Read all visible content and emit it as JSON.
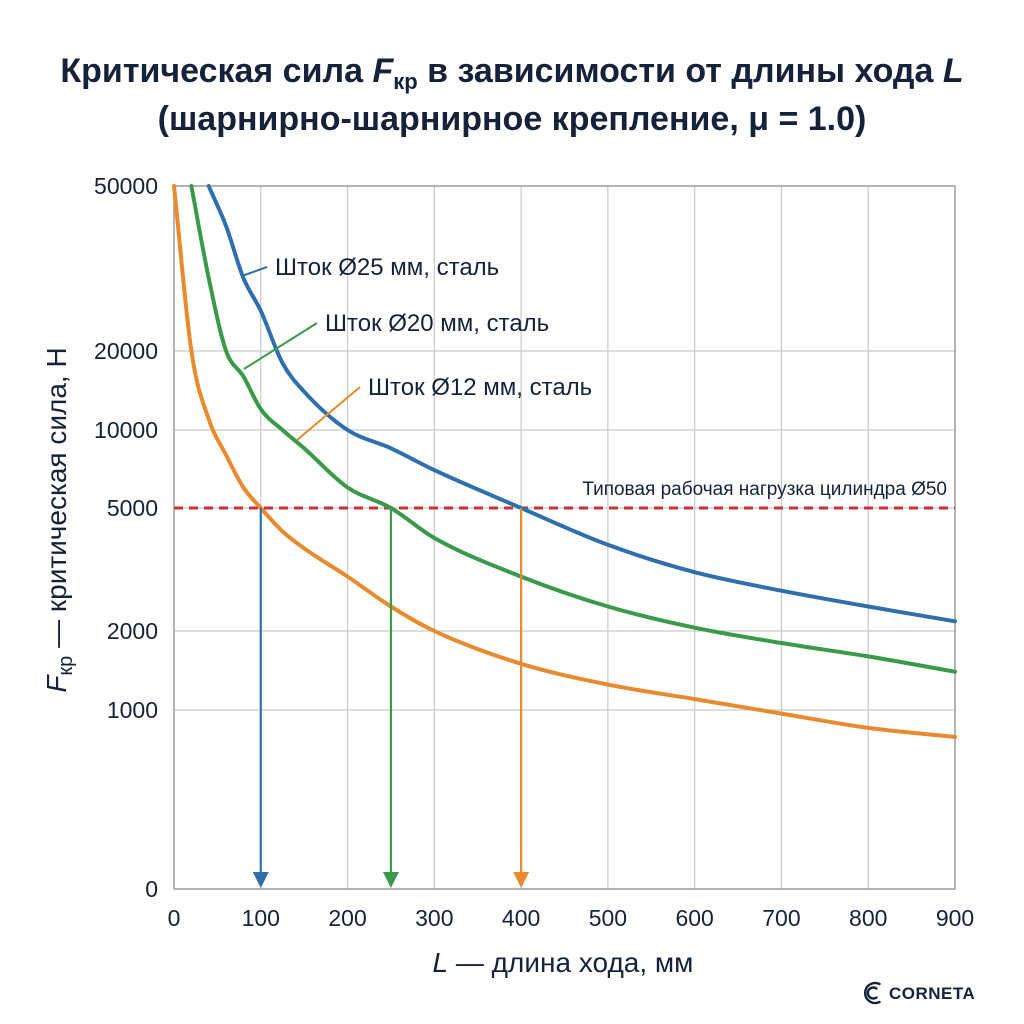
{
  "chart_data": {
    "type": "line",
    "title_line1_pre": "Критическая сила ",
    "title_line1_var": "F",
    "title_line1_sub": "кр",
    "title_line1_post": " в зависимости от длины хода ",
    "title_line1_var2": "L",
    "title_line2": "(шарнирно-шарнирное крепление, μ = 1.0)",
    "xlabel_var": "L",
    "xlabel_text": " — длина хода, мм",
    "ylabel_var": "F",
    "ylabel_sub": "кр",
    "ylabel_text": " — критическая сила, Н",
    "x_ticks": [
      0,
      100,
      200,
      300,
      400,
      500,
      600,
      700,
      800,
      900
    ],
    "x_tick_labels": [
      "0",
      "100",
      "200",
      "300",
      "400",
      "500",
      "600",
      "700",
      "800",
      "900"
    ],
    "y_ticks": [
      0,
      1000,
      2000,
      5000,
      10000,
      20000,
      50000
    ],
    "y_tick_labels": [
      "0",
      "1000",
      "2000",
      "5000",
      "10000",
      "20000",
      "50000"
    ],
    "xlim": [
      0,
      900
    ],
    "ylim": [
      0,
      50000
    ],
    "grid": true,
    "series": [
      {
        "name": "Шток Ø25 мм, сталь",
        "color": "#2f6fae",
        "x": [
          40,
          60,
          80,
          100,
          125,
          150,
          200,
          250,
          300,
          400,
          500,
          600,
          700,
          800,
          900
        ],
        "y": [
          50000,
          40000,
          30000,
          25000,
          18000,
          14000,
          10000,
          8500,
          7000,
          5000,
          3800,
          3100,
          2700,
          2400,
          2150
        ],
        "label_anchor_x": 80
      },
      {
        "name": "Шток Ø20 мм, сталь",
        "color": "#3a9a4a",
        "x": [
          20,
          40,
          60,
          80,
          100,
          125,
          150,
          200,
          250,
          300,
          400,
          500,
          600,
          700,
          800,
          900
        ],
        "y": [
          50000,
          30000,
          20000,
          16000,
          12000,
          10000,
          8500,
          6000,
          5000,
          4000,
          3000,
          2400,
          2050,
          1800,
          1600,
          1400
        ],
        "label_anchor_x": 80
      },
      {
        "name": "Шток Ø12 мм, сталь",
        "color": "#e88a2e",
        "x": [
          0,
          20,
          40,
          60,
          80,
          100,
          125,
          150,
          200,
          250,
          300,
          400,
          500,
          600,
          700,
          800,
          900
        ],
        "y": [
          50000,
          20000,
          11000,
          8000,
          6000,
          5000,
          4200,
          3700,
          3000,
          2400,
          2000,
          1500,
          1250,
          1100,
          980,
          900,
          850
        ],
        "label_anchor_x": 145
      }
    ],
    "reference_line": {
      "y": 5000,
      "label": "Типовая рабочая нагрузка цилиндра Ø50",
      "color": "#c8323a"
    },
    "markers": [
      {
        "x": 100,
        "color": "#2f6fae"
      },
      {
        "x": 250,
        "color": "#3a9a4a"
      },
      {
        "x": 400,
        "color": "#e88a2e"
      }
    ]
  },
  "brand": {
    "name": "CORNETA",
    "logo_icon": "corneta-logo-icon",
    "color": "#16213a"
  }
}
